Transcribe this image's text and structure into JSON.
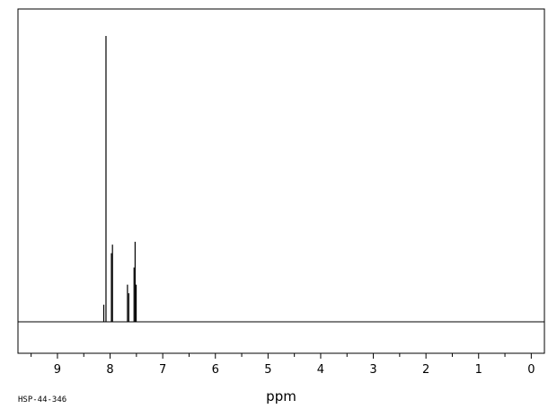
{
  "chart_data": {
    "type": "line",
    "title": "",
    "xlabel": "ppm",
    "ylabel": "",
    "xlim": [
      9.75,
      -0.25
    ],
    "x_reversed": true,
    "x_ticks": [
      "9",
      "8",
      "7",
      "6",
      "5",
      "4",
      "3",
      "2",
      "1",
      "0"
    ],
    "y_range": [
      0,
      100
    ],
    "peaks": [
      {
        "ppm": 8.12,
        "height": 6
      },
      {
        "ppm": 8.078,
        "height": 100
      },
      {
        "ppm": 7.975,
        "height": 24
      },
      {
        "ppm": 7.955,
        "height": 27
      },
      {
        "ppm": 7.67,
        "height": 13
      },
      {
        "ppm": 7.645,
        "height": 10
      },
      {
        "ppm": 7.545,
        "height": 19
      },
      {
        "ppm": 7.525,
        "height": 28
      },
      {
        "ppm": 7.505,
        "height": 13
      }
    ],
    "grid": false,
    "legend": "none"
  },
  "footer": {
    "code": "HSP-44-346"
  }
}
